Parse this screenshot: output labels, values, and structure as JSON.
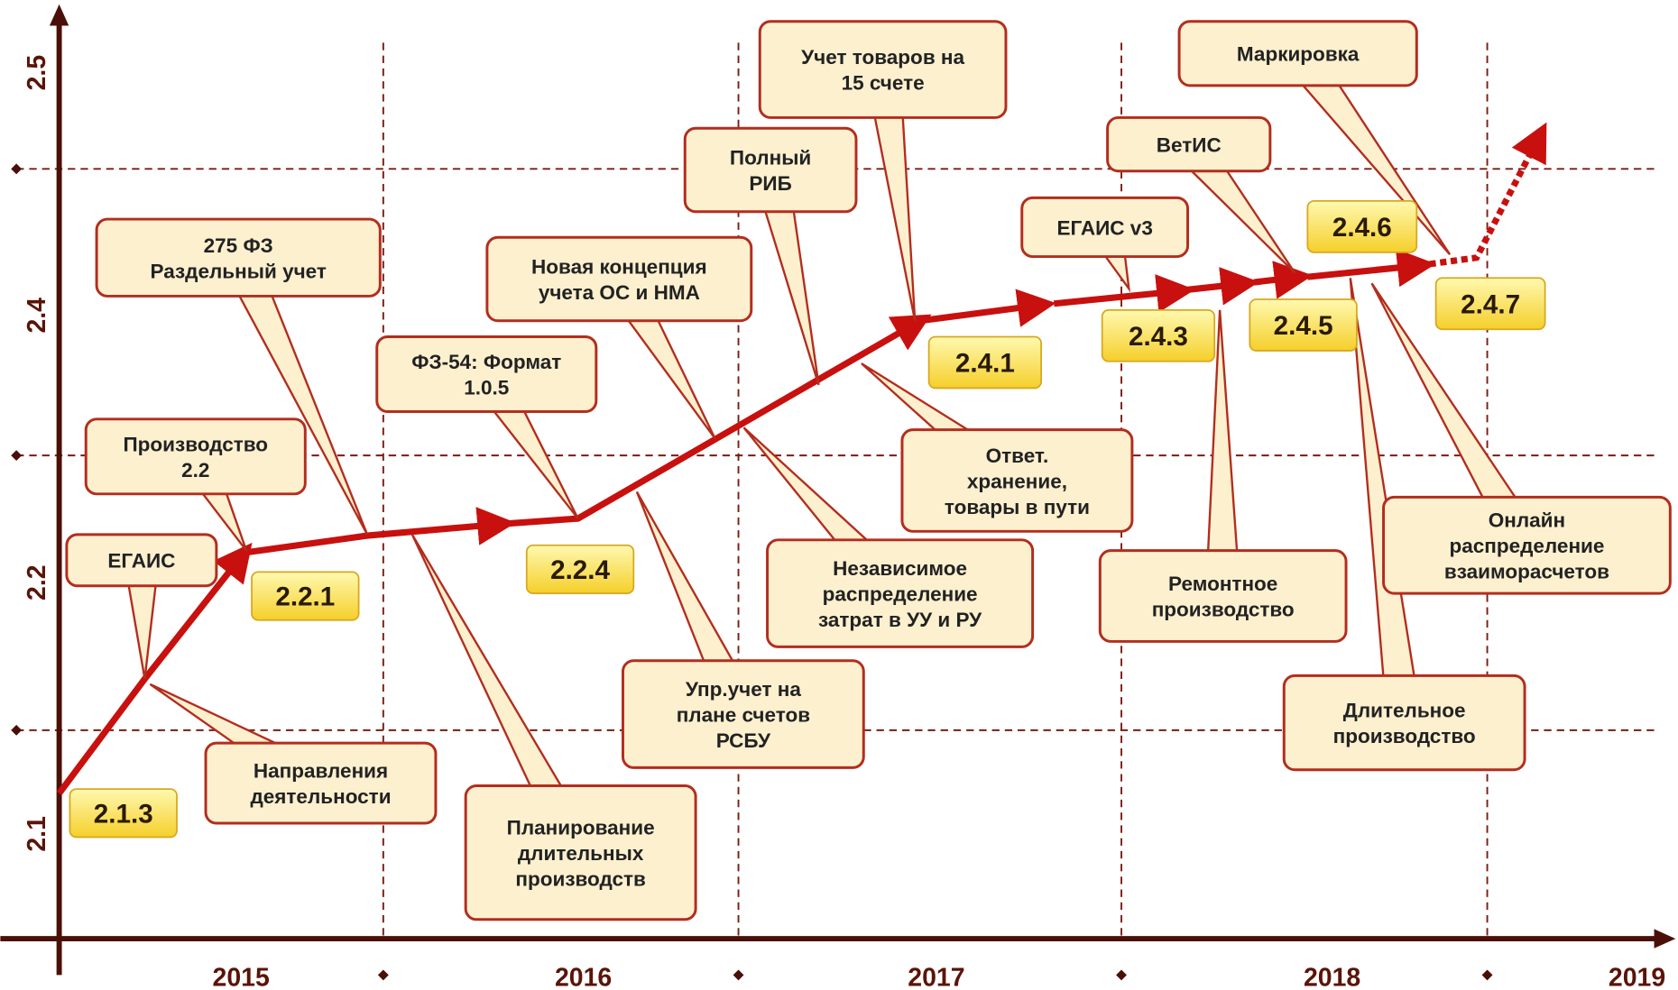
{
  "y_axis": {
    "labels": [
      "2.1",
      "2.2",
      "2.4",
      "2.5"
    ]
  },
  "x_axis": {
    "labels": [
      "2015",
      "2016",
      "2017",
      "2018",
      "2019"
    ]
  },
  "versions": [
    "2.1.3",
    "2.2.1",
    "2.2.4",
    "2.4.1",
    "2.4.3",
    "2.4.5",
    "2.4.6",
    "2.4.7"
  ],
  "callouts": [
    {
      "lines": [
        "ЕГАИС"
      ]
    },
    {
      "lines": [
        "Производство",
        "2.2"
      ]
    },
    {
      "lines": [
        "275 ФЗ",
        "Раздельный учет"
      ]
    },
    {
      "lines": [
        "Направления",
        "деятельности"
      ]
    },
    {
      "lines": [
        "ФЗ-54: Формат",
        "1.0.5"
      ]
    },
    {
      "lines": [
        "Планирование",
        "длительных",
        "производств"
      ]
    },
    {
      "lines": [
        "Новая концепция",
        "учета ОС и НМА"
      ]
    },
    {
      "lines": [
        "Упр.учет на",
        "плане счетов",
        "РСБУ"
      ]
    },
    {
      "lines": [
        "Полный",
        "РИБ"
      ]
    },
    {
      "lines": [
        "Независимое",
        "распределение",
        "затрат в УУ и РУ"
      ]
    },
    {
      "lines": [
        "Учет товаров на",
        "15 счете"
      ]
    },
    {
      "lines": [
        "Ответ.",
        "хранение,",
        "товары в пути"
      ]
    },
    {
      "lines": [
        "ЕГАИС v3"
      ]
    },
    {
      "lines": [
        "ВетИС"
      ]
    },
    {
      "lines": [
        "Ремонтное",
        "производство"
      ]
    },
    {
      "lines": [
        "Маркировка"
      ]
    },
    {
      "lines": [
        "Длительное",
        "производство"
      ]
    },
    {
      "lines": [
        "Онлайн",
        "распределение",
        "взаиморасчетов"
      ]
    }
  ]
}
